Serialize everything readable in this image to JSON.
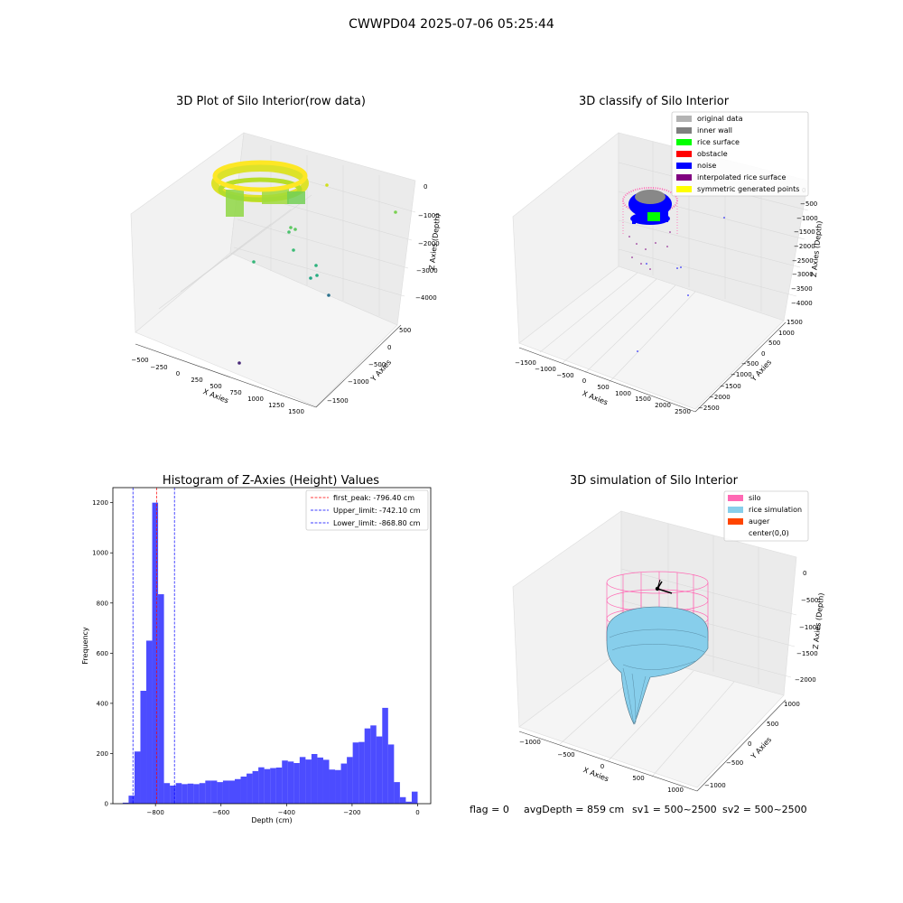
{
  "figure": {
    "title": "CWWPD04 2025-07-06 05:25:44",
    "footer": {
      "flag": "flag = 0",
      "avg_depth": "avgDepth = 859 cm",
      "sv1": "sv1 = 500~2500",
      "sv2": "sv2 = 500~2500"
    }
  },
  "panels": {
    "raw": {
      "title": "3D Plot of Silo Interior(row data)",
      "xlabel": "X Axies",
      "ylabel": "Y Axies",
      "zlabel": "Z Axies (Depth)",
      "xticks": [
        "−500",
        "−250",
        "0",
        "250",
        "500",
        "750",
        "1000",
        "1250",
        "1500"
      ],
      "yticks": [
        "500",
        "0",
        "−500",
        "−1000",
        "−1500"
      ],
      "zticks": [
        "0",
        "−1000",
        "−2000",
        "−3000",
        "−4000"
      ]
    },
    "classify": {
      "title": "3D classify of Silo Interior",
      "xlabel": "X Axies",
      "ylabel": "Y Axies",
      "zlabel": "Z Axies (Depth)",
      "xticks": [
        "−1500",
        "−1000",
        "−500",
        "0",
        "500",
        "1000",
        "1500",
        "2000",
        "2500"
      ],
      "yticks": [
        "1500",
        "1000",
        "500",
        "0",
        "−500",
        "−1000",
        "−1500",
        "−2000",
        "−2500"
      ],
      "zticks": [
        "0",
        "−500",
        "−1000",
        "−1500",
        "−2000",
        "−2500",
        "−3000",
        "−3500",
        "−4000"
      ],
      "legend": [
        {
          "label": "original data",
          "color": "#b3b3b3"
        },
        {
          "label": "inner wall",
          "color": "#808080"
        },
        {
          "label": "rice surface",
          "color": "#00ff00"
        },
        {
          "label": "obstacle",
          "color": "#ff0000"
        },
        {
          "label": "noise",
          "color": "#0000ff"
        },
        {
          "label": "interpolated rice surface",
          "color": "#800080"
        },
        {
          "label": "symmetric generated points",
          "color": "#ffff00"
        }
      ]
    },
    "simulation": {
      "title": "3D simulation of Silo Interior",
      "xlabel": "X Axies",
      "ylabel": "Y Axies",
      "zlabel": "Z Axies (Depth)",
      "xticks": [
        "−1000",
        "−500",
        "0",
        "500",
        "1000"
      ],
      "yticks": [
        "1000",
        "500",
        "0",
        "−500",
        "−1000"
      ],
      "zticks": [
        "0",
        "−500",
        "−1000",
        "−1500",
        "−2000"
      ],
      "legend": [
        {
          "label": "silo",
          "color": "#ff69b4"
        },
        {
          "label": "rice simulation",
          "color": "#87ceeb"
        },
        {
          "label": "auger",
          "color": "#ff4500"
        },
        {
          "label": "center(0,0)",
          "color": "#ffffff"
        }
      ]
    }
  },
  "chart_data": {
    "type": "bar",
    "title": "Histogram of Z-Axies (Height) Values",
    "xlabel": "Depth (cm)",
    "ylabel": "Frequency",
    "xlim": [
      -930,
      40
    ],
    "ylim": [
      0,
      1260
    ],
    "xticks": [
      -800,
      -600,
      -400,
      -200,
      0
    ],
    "xtick_labels": [
      "−800",
      "−600",
      "−400",
      "−200",
      "0"
    ],
    "yticks": [
      0,
      200,
      400,
      600,
      800,
      1000,
      1200
    ],
    "bar_color": "#0000ff",
    "bars": [
      {
        "x0": -900,
        "x1": -882,
        "y": 4
      },
      {
        "x0": -882,
        "x1": -864,
        "y": 32
      },
      {
        "x0": -864,
        "x1": -846,
        "y": 208
      },
      {
        "x0": -846,
        "x1": -828,
        "y": 450
      },
      {
        "x0": -828,
        "x1": -810,
        "y": 650
      },
      {
        "x0": -810,
        "x1": -792,
        "y": 1200
      },
      {
        "x0": -792,
        "x1": -774,
        "y": 835
      },
      {
        "x0": -774,
        "x1": -756,
        "y": 82
      },
      {
        "x0": -756,
        "x1": -738,
        "y": 72
      },
      {
        "x0": -738,
        "x1": -720,
        "y": 82
      },
      {
        "x0": -720,
        "x1": -702,
        "y": 78
      },
      {
        "x0": -702,
        "x1": -684,
        "y": 80
      },
      {
        "x0": -684,
        "x1": -666,
        "y": 78
      },
      {
        "x0": -666,
        "x1": -648,
        "y": 82
      },
      {
        "x0": -648,
        "x1": -630,
        "y": 92
      },
      {
        "x0": -630,
        "x1": -612,
        "y": 92
      },
      {
        "x0": -612,
        "x1": -594,
        "y": 86
      },
      {
        "x0": -594,
        "x1": -576,
        "y": 92
      },
      {
        "x0": -576,
        "x1": -558,
        "y": 92
      },
      {
        "x0": -558,
        "x1": -540,
        "y": 98
      },
      {
        "x0": -540,
        "x1": -522,
        "y": 108
      },
      {
        "x0": -522,
        "x1": -504,
        "y": 120
      },
      {
        "x0": -504,
        "x1": -486,
        "y": 130
      },
      {
        "x0": -486,
        "x1": -468,
        "y": 145
      },
      {
        "x0": -468,
        "x1": -450,
        "y": 138
      },
      {
        "x0": -450,
        "x1": -432,
        "y": 142
      },
      {
        "x0": -432,
        "x1": -414,
        "y": 144
      },
      {
        "x0": -414,
        "x1": -396,
        "y": 172
      },
      {
        "x0": -396,
        "x1": -378,
        "y": 168
      },
      {
        "x0": -378,
        "x1": -360,
        "y": 162
      },
      {
        "x0": -360,
        "x1": -342,
        "y": 186
      },
      {
        "x0": -342,
        "x1": -324,
        "y": 176
      },
      {
        "x0": -324,
        "x1": -306,
        "y": 198
      },
      {
        "x0": -306,
        "x1": -288,
        "y": 184
      },
      {
        "x0": -288,
        "x1": -270,
        "y": 175
      },
      {
        "x0": -270,
        "x1": -252,
        "y": 136
      },
      {
        "x0": -252,
        "x1": -234,
        "y": 134
      },
      {
        "x0": -234,
        "x1": -216,
        "y": 160
      },
      {
        "x0": -216,
        "x1": -198,
        "y": 186
      },
      {
        "x0": -198,
        "x1": -180,
        "y": 244
      },
      {
        "x0": -180,
        "x1": -162,
        "y": 246
      },
      {
        "x0": -162,
        "x1": -144,
        "y": 300
      },
      {
        "x0": -144,
        "x1": -126,
        "y": 312
      },
      {
        "x0": -126,
        "x1": -108,
        "y": 268
      },
      {
        "x0": -108,
        "x1": -90,
        "y": 382
      },
      {
        "x0": -90,
        "x1": -72,
        "y": 236
      },
      {
        "x0": -72,
        "x1": -54,
        "y": 86
      },
      {
        "x0": -54,
        "x1": -36,
        "y": 26
      },
      {
        "x0": -36,
        "x1": -18,
        "y": 8
      },
      {
        "x0": -18,
        "x1": 0,
        "y": 48
      }
    ],
    "vlines": [
      {
        "label": "first_peak: -796.40 cm",
        "x": -796.4,
        "color": "#ff0000"
      },
      {
        "label": "Upper_limit: -742.10 cm",
        "x": -742.1,
        "color": "#0000ff"
      },
      {
        "label": "Lower_limit: -868.80 cm",
        "x": -868.8,
        "color": "#0000ff"
      }
    ]
  }
}
